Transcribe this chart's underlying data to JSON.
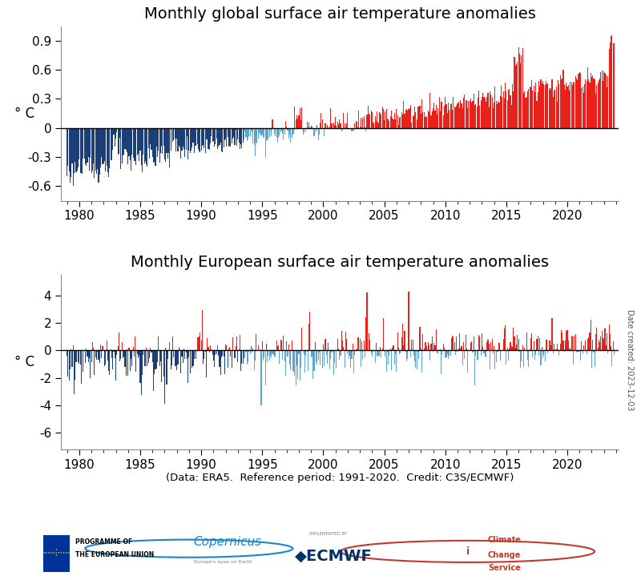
{
  "title_global": "Monthly global surface air temperature anomalies",
  "title_europe": "Monthly European surface air temperature anomalies",
  "ylabel": "° C",
  "xlabel_note": "(Data: ERA5.  Reference period: 1991-2020.  Credit: C3S/ECMWF)",
  "date_label": "Date created: 2023-12-03",
  "ylim_global": [
    -0.75,
    1.05
  ],
  "ylim_europe": [
    -7.2,
    5.5
  ],
  "yticks_global": [
    -0.6,
    -0.3,
    0.0,
    0.3,
    0.6,
    0.9
  ],
  "yticks_europe": [
    -6,
    -4,
    -2,
    0,
    2,
    4
  ],
  "xlim": [
    1978.5,
    2024.2
  ],
  "xticks": [
    1980,
    1985,
    1990,
    1995,
    2000,
    2005,
    2010,
    2015,
    2020
  ],
  "color_positive": "#e8221a",
  "color_negative_light": "#5ba3d0",
  "color_negative_dark": "#1c3f7a",
  "fig_background": "#ffffff",
  "axes_background": "#ffffff",
  "spine_color": "#888888",
  "title_fontsize": 14,
  "tick_fontsize": 11,
  "ylabel_fontsize": 12
}
